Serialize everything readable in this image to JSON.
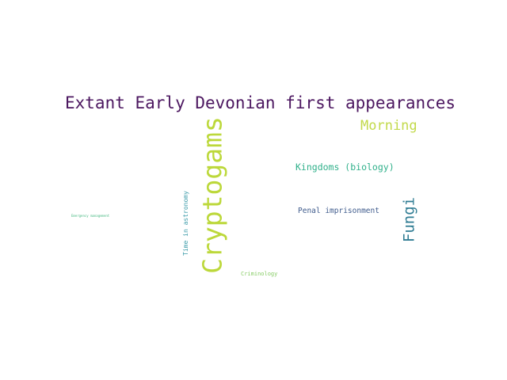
{
  "words": [
    {
      "text": "Extant Early Devonian first appearances",
      "color": "#4c1760"
    },
    {
      "text": "Cryptogams",
      "color": "#bcd83a"
    },
    {
      "text": "Morning",
      "color": "#c2d94a"
    },
    {
      "text": "Kingdoms (biology)",
      "color": "#2fb08a"
    },
    {
      "text": "Fungi",
      "color": "#2f7c93"
    },
    {
      "text": "Penal imprisonment",
      "color": "#3f5b8c"
    },
    {
      "text": "Time in astronomy",
      "color": "#3a9aa8"
    },
    {
      "text": "Emergency management",
      "color": "#47b982"
    },
    {
      "text": "Criminology",
      "color": "#88cc66"
    }
  ]
}
